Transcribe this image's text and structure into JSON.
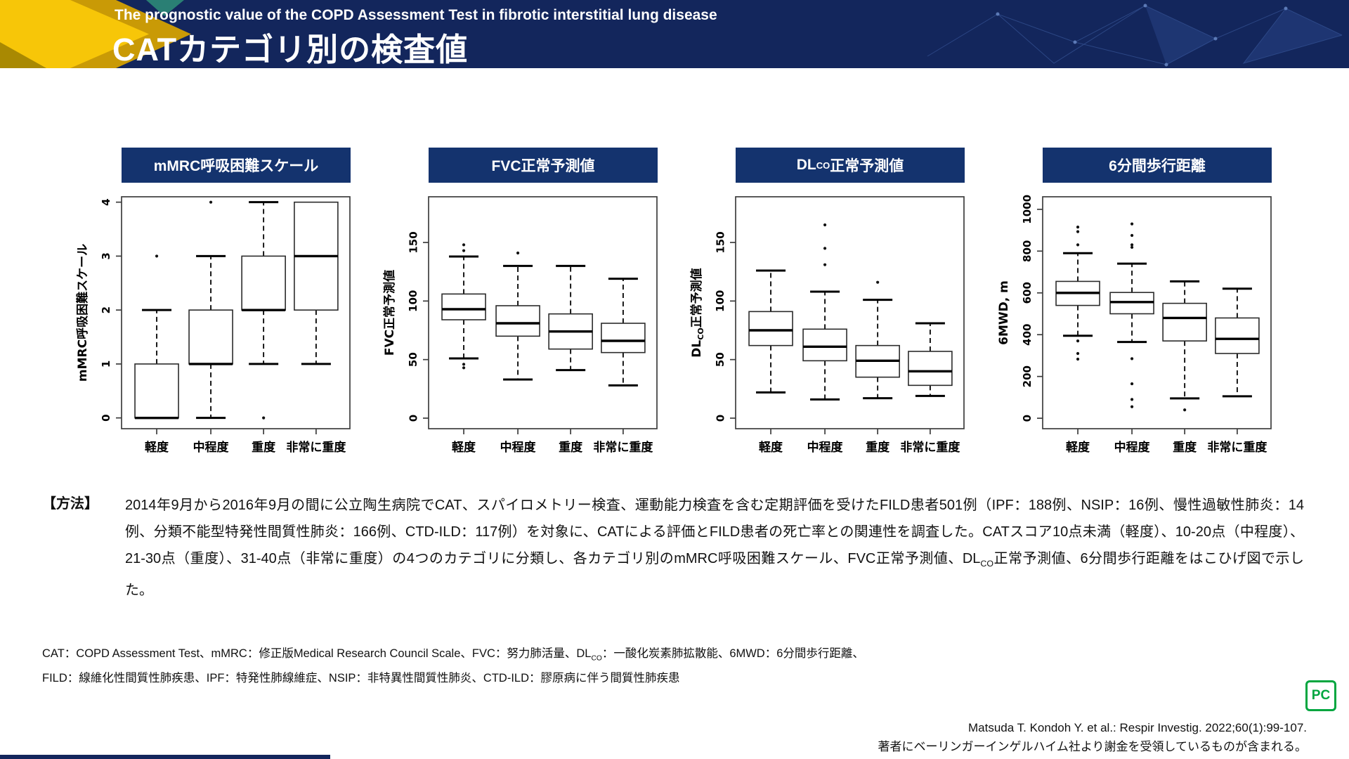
{
  "header": {
    "subtitle": "The prognostic value of the COPD Assessment Test in fibrotic interstitial lung disease",
    "title": "CATカテゴリ別の検査値"
  },
  "categories": [
    "軽度",
    "中程度",
    "重度",
    "非常に重度"
  ],
  "chart_data": [
    {
      "type": "box",
      "title_parts": [
        {
          "t": "mMRC呼吸困難スケール"
        }
      ],
      "ylabel_parts": [
        {
          "t": "mMRC呼吸困難スケール"
        }
      ],
      "yticks": [
        0,
        1,
        2,
        3,
        4
      ],
      "ylim": [
        -0.2,
        4.1
      ],
      "grid": false,
      "categories": [
        "軽度",
        "中程度",
        "重度",
        "非常に重度"
      ],
      "boxes": [
        {
          "category": "軽度",
          "q1": 0,
          "median": 0,
          "q3": 1,
          "whisker_low": 0,
          "whisker_high": 2,
          "outliers": [
            3
          ]
        },
        {
          "category": "中程度",
          "q1": 1,
          "median": 1,
          "q3": 2,
          "whisker_low": 0,
          "whisker_high": 3,
          "outliers": [
            4
          ]
        },
        {
          "category": "重度",
          "q1": 2,
          "median": 2,
          "q3": 3,
          "whisker_low": 1,
          "whisker_high": 4,
          "outliers": [
            0
          ]
        },
        {
          "category": "非常に重度",
          "q1": 2,
          "median": 3,
          "q3": 4,
          "whisker_low": 1,
          "whisker_high": 4,
          "outliers": []
        }
      ]
    },
    {
      "type": "box",
      "title_parts": [
        {
          "t": "FVC正常予測値"
        }
      ],
      "ylabel_parts": [
        {
          "t": "FVC正常予測値"
        }
      ],
      "yticks": [
        0,
        50,
        100,
        150
      ],
      "ylim": [
        -9,
        189
      ],
      "grid": false,
      "categories": [
        "軽度",
        "中程度",
        "重度",
        "非常に重度"
      ],
      "boxes": [
        {
          "category": "軽度",
          "q1": 84,
          "median": 93,
          "q3": 106,
          "whisker_low": 51,
          "whisker_high": 138,
          "outliers": [
            148,
            143,
            46,
            43
          ]
        },
        {
          "category": "中程度",
          "q1": 70,
          "median": 81,
          "q3": 96,
          "whisker_low": 33,
          "whisker_high": 130,
          "outliers": [
            141
          ]
        },
        {
          "category": "重度",
          "q1": 59,
          "median": 74,
          "q3": 89,
          "whisker_low": 41,
          "whisker_high": 130,
          "outliers": []
        },
        {
          "category": "非常に重度",
          "q1": 56,
          "median": 66,
          "q3": 81,
          "whisker_low": 28,
          "whisker_high": 119,
          "outliers": []
        }
      ]
    },
    {
      "type": "box",
      "title_parts": [
        {
          "t": "DL"
        },
        {
          "t": "CO",
          "sub": true
        },
        {
          "t": "正常予測値"
        }
      ],
      "ylabel_parts": [
        {
          "t": "DL"
        },
        {
          "t": "CO",
          "sub": true
        },
        {
          "t": "正常予測値"
        }
      ],
      "yticks": [
        0,
        50,
        100,
        150
      ],
      "ylim": [
        -9,
        189
      ],
      "grid": false,
      "categories": [
        "軽度",
        "中程度",
        "重度",
        "非常に重度"
      ],
      "boxes": [
        {
          "category": "軽度",
          "q1": 62,
          "median": 75,
          "q3": 91,
          "whisker_low": 22,
          "whisker_high": 126,
          "outliers": []
        },
        {
          "category": "中程度",
          "q1": 49,
          "median": 61,
          "q3": 76,
          "whisker_low": 16,
          "whisker_high": 108,
          "outliers": [
            165,
            145,
            131
          ]
        },
        {
          "category": "重度",
          "q1": 35,
          "median": 49,
          "q3": 62,
          "whisker_low": 17,
          "whisker_high": 101,
          "outliers": [
            116
          ]
        },
        {
          "category": "非常に重度",
          "q1": 28,
          "median": 40,
          "q3": 57,
          "whisker_low": 19,
          "whisker_high": 81,
          "outliers": []
        }
      ]
    },
    {
      "type": "box",
      "title_parts": [
        {
          "t": "6分間歩行距離"
        }
      ],
      "ylabel_parts": [
        {
          "t": "6MWD, m"
        }
      ],
      "yticks": [
        0,
        200,
        400,
        600,
        800,
        1000
      ],
      "ylim": [
        -50,
        1060
      ],
      "grid": false,
      "categories": [
        "軽度",
        "中程度",
        "重度",
        "非常に重度"
      ],
      "boxes": [
        {
          "category": "軽度",
          "q1": 540,
          "median": 600,
          "q3": 655,
          "whisker_low": 395,
          "whisker_high": 790,
          "outliers": [
            915,
            893,
            830,
            370,
            310,
            283
          ]
        },
        {
          "category": "中程度",
          "q1": 500,
          "median": 556,
          "q3": 602,
          "whisker_low": 365,
          "whisker_high": 740,
          "outliers": [
            930,
            875,
            830,
            818,
            285,
            165,
            90,
            55
          ]
        },
        {
          "category": "重度",
          "q1": 370,
          "median": 480,
          "q3": 550,
          "whisker_low": 95,
          "whisker_high": 655,
          "outliers": [
            40
          ]
        },
        {
          "category": "非常に重度",
          "q1": 310,
          "median": 380,
          "q3": 480,
          "whisker_low": 105,
          "whisker_high": 620,
          "outliers": []
        }
      ]
    }
  ],
  "method": {
    "label": "【方法】",
    "text_parts": [
      {
        "t": "2014年9月から2016年9月の間に公立陶生病院でCAT、スパイロメトリー検査、運動能力検査を含む定期評価を受けたFILD患者501例（IPF：188例、NSIP：16例、慢性過敏性肺炎：14例、分類不能型特発性間質性肺炎：166例、CTD-ILD：117例）を対象に、CATによる評価とFILD患者の死亡率との関連性を調査した。CATスコア10点未満（軽度）、10-20点（中程度）、21-30点（重度）、31-40点（非常に重度）の4つのカテゴリに分類し、各カテゴリ別のmMRC呼吸困難スケール、FVC正常予測値、DL"
      },
      {
        "t": "CO",
        "sub": true
      },
      {
        "t": "正常予測値、6分間歩行距離をはこひげ図で示した。"
      }
    ]
  },
  "footnotes": {
    "line1_parts": [
      {
        "t": "CAT：COPD Assessment Test、mMRC：修正版Medical Research Council Scale、FVC：努力肺活量、DL"
      },
      {
        "t": "CO",
        "sub": true
      },
      {
        "t": "：一酸化炭素肺拡散能、6MWD：6分間歩行距離、"
      }
    ],
    "line2": "FILD：線維化性間質性肺疾患、IPF：特発性肺線維症、NSIP：非特異性間質性肺炎、CTD-ILD：膠原病に伴う間質性肺疾患"
  },
  "citation": {
    "line1": "Matsuda T. Kondoh Y. et al.: Respir Investig. 2022;60(1):99-107.",
    "line2": "著者にベーリンガーインゲルハイム社より謝金を受領しているものが含まれる。"
  },
  "logo": {
    "text": "PC"
  },
  "colors": {
    "header_navy": "#13265c",
    "panel_navy": "#14336e",
    "accent_yellow": "#f7c608",
    "accent_gold": "#c99a06",
    "accent_teal": "#2a7f74",
    "logo_green": "#00a63f",
    "box_stroke": "#2b2b2b"
  }
}
